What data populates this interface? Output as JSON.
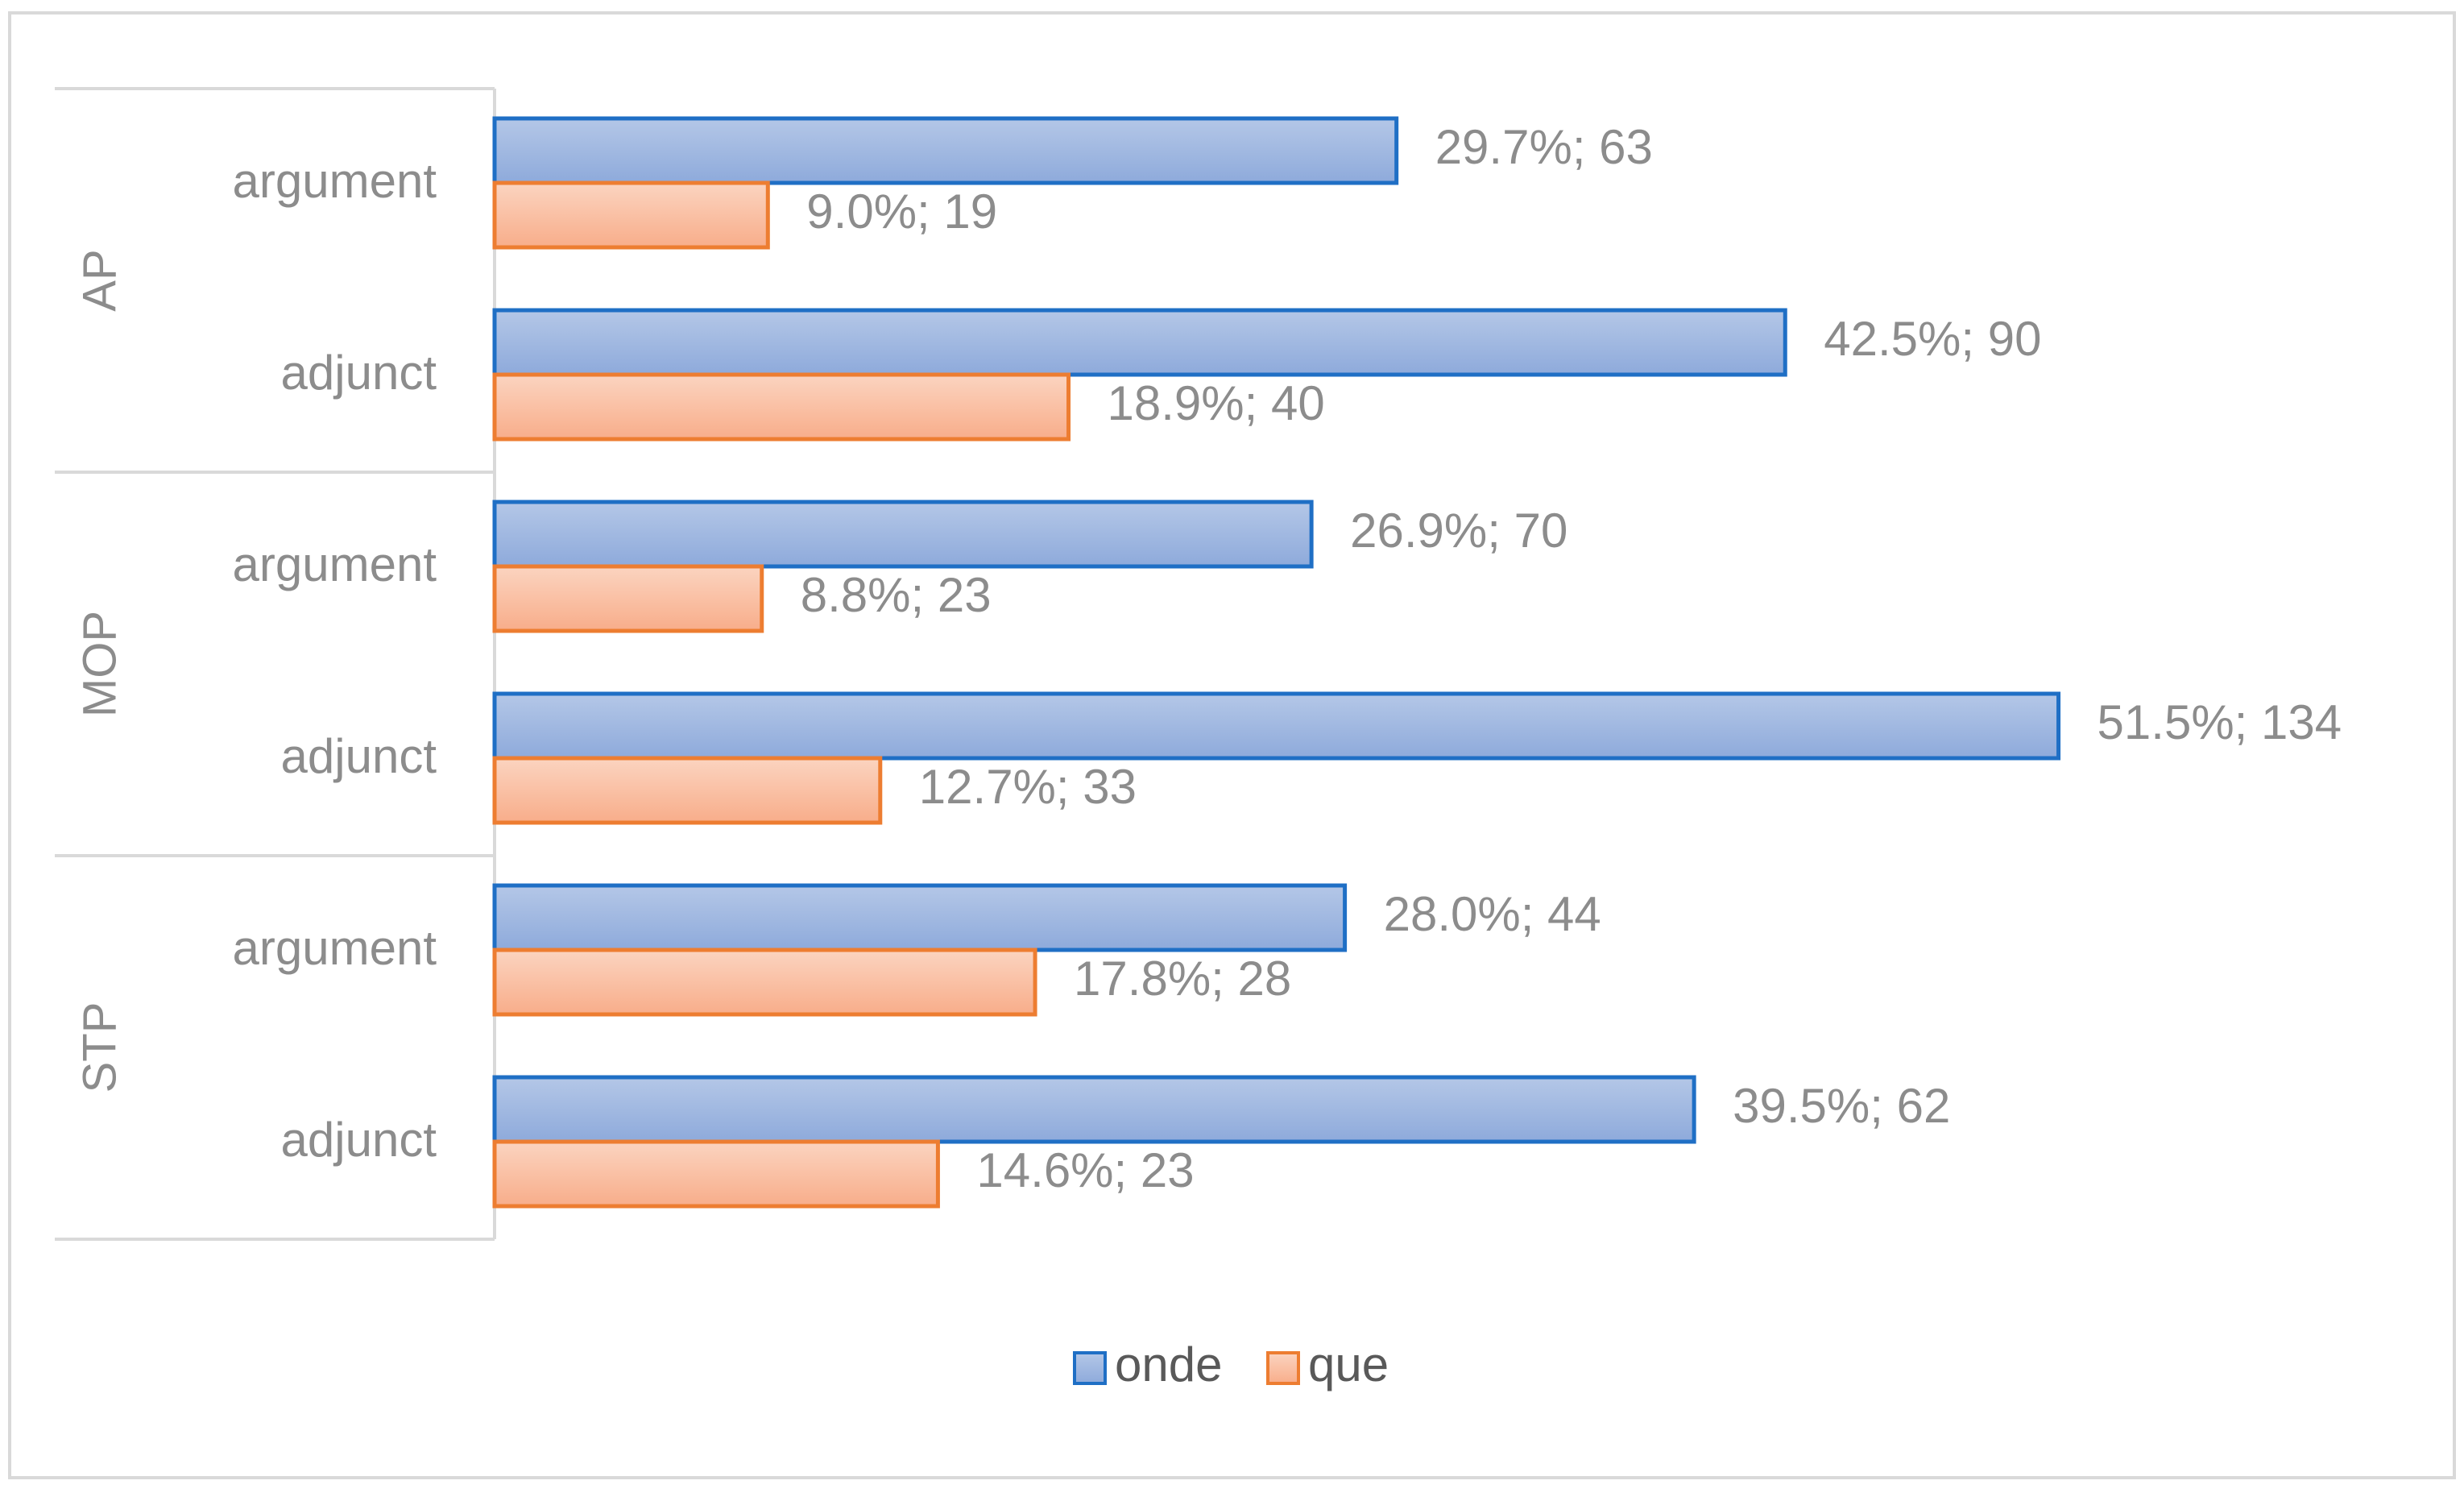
{
  "chart_data": {
    "type": "bar",
    "orientation": "horizontal",
    "title": "",
    "xlabel": "",
    "ylabel": "",
    "groups": [
      {
        "name": "AP",
        "categories": [
          {
            "name": "argument",
            "bars": [
              {
                "series": "onde",
                "pct": 29.7,
                "count": 63,
                "label": "29.7%; 63"
              },
              {
                "series": "que",
                "pct": 9.0,
                "count": 19,
                "label": "9.0%; 19"
              }
            ]
          },
          {
            "name": "adjunct",
            "bars": [
              {
                "series": "onde",
                "pct": 42.5,
                "count": 90,
                "label": "42.5%; 90"
              },
              {
                "series": "que",
                "pct": 18.9,
                "count": 40,
                "label": "18.9%; 40"
              }
            ]
          }
        ]
      },
      {
        "name": "MOP",
        "categories": [
          {
            "name": "argument",
            "bars": [
              {
                "series": "onde",
                "pct": 26.9,
                "count": 70,
                "label": "26.9%; 70"
              },
              {
                "series": "que",
                "pct": 8.8,
                "count": 23,
                "label": "8.8%; 23"
              }
            ]
          },
          {
            "name": "adjunct",
            "bars": [
              {
                "series": "onde",
                "pct": 51.5,
                "count": 134,
                "label": "51.5%; 134"
              },
              {
                "series": "que",
                "pct": 12.7,
                "count": 33,
                "label": "12.7%; 33"
              }
            ]
          }
        ]
      },
      {
        "name": "STP",
        "categories": [
          {
            "name": "argument",
            "bars": [
              {
                "series": "onde",
                "pct": 28.0,
                "count": 44,
                "label": "28.0%; 44"
              },
              {
                "series": "que",
                "pct": 17.8,
                "count": 28,
                "label": "17.8%; 28"
              }
            ]
          },
          {
            "name": "adjunct",
            "bars": [
              {
                "series": "onde",
                "pct": 39.5,
                "count": 62,
                "label": "39.5%; 62"
              },
              {
                "series": "que",
                "pct": 14.6,
                "count": 23,
                "label": "14.6%; 23"
              }
            ]
          }
        ]
      }
    ],
    "series": [
      {
        "name": "onde",
        "fill_top": "#b4c7e7",
        "fill_bottom": "#8eaadb",
        "stroke": "#1f6fc5"
      },
      {
        "name": "que",
        "fill_top": "#fbd4c0",
        "fill_bottom": "#f8ad8a",
        "stroke": "#ed7d31"
      }
    ],
    "legend": {
      "position": "bottom",
      "items": [
        {
          "name": "onde"
        },
        {
          "name": "que"
        }
      ]
    },
    "grid": false,
    "value_axis_visible": false,
    "value_label_color": "#8c8c8c",
    "category_label_color": "#8c8c8c",
    "outer_border_color": "#d9d9d9",
    "axis_line_color": "#d9d9d9"
  }
}
